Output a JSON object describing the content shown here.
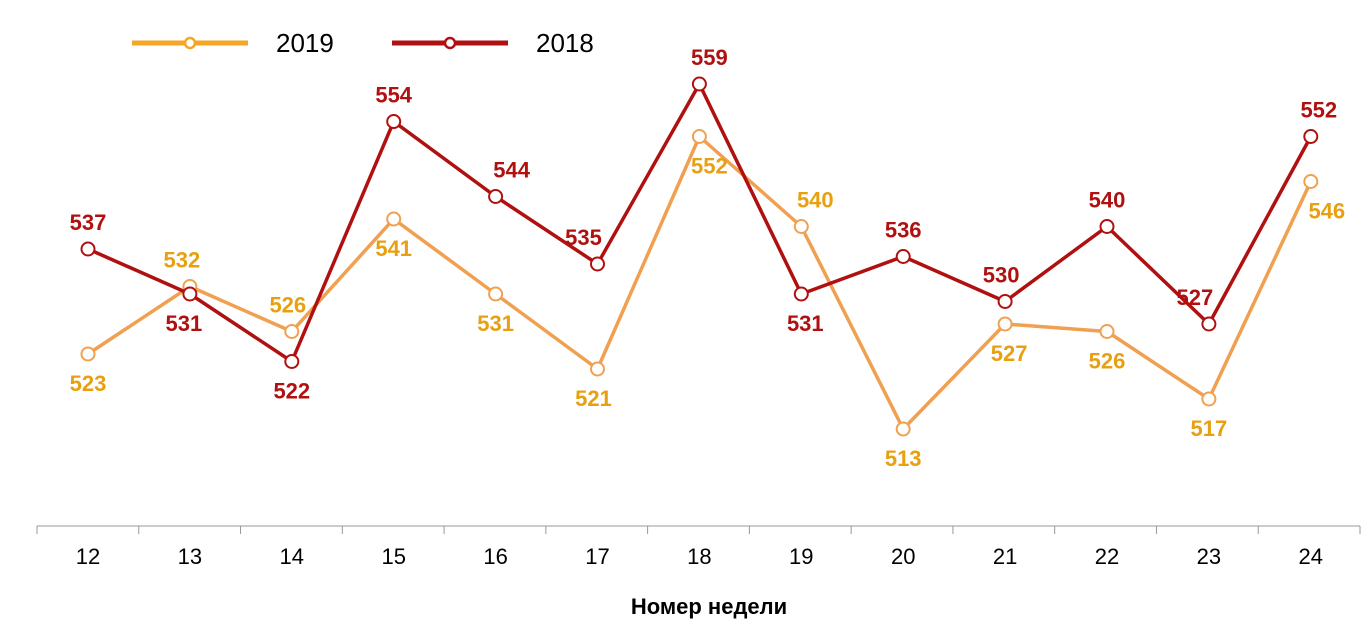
{
  "chart_data": {
    "type": "line",
    "title": "",
    "xlabel": "Номер недели",
    "ylabel": "",
    "categories": [
      "12",
      "13",
      "14",
      "15",
      "16",
      "17",
      "18",
      "19",
      "20",
      "21",
      "22",
      "23",
      "24"
    ],
    "ylim": [
      493,
      565
    ],
    "grid": false,
    "legend_position": "top-left",
    "series": [
      {
        "name": "2019",
        "color": "#f0a050",
        "label_color": "#e8a010",
        "legend_color": "#f5a623",
        "values": [
          523,
          532,
          526,
          541,
          531,
          521,
          552,
          540,
          513,
          527,
          526,
          517,
          546
        ],
        "labels": [
          "523",
          "532",
          "526",
          "541",
          "531",
          "521",
          "552",
          "540",
          "513",
          "527",
          "526",
          "517",
          "546"
        ]
      },
      {
        "name": "2018",
        "color": "#b01010",
        "label_color": "#b01010",
        "legend_color": "#b01010",
        "values": [
          537,
          531,
          522,
          554,
          544,
          535,
          559,
          531,
          536,
          530,
          540,
          527,
          552
        ],
        "labels": [
          "537",
          "531",
          "522",
          "554",
          "544",
          "535",
          "559",
          "531",
          "536",
          "530",
          "540",
          "527",
          "552"
        ]
      }
    ]
  }
}
